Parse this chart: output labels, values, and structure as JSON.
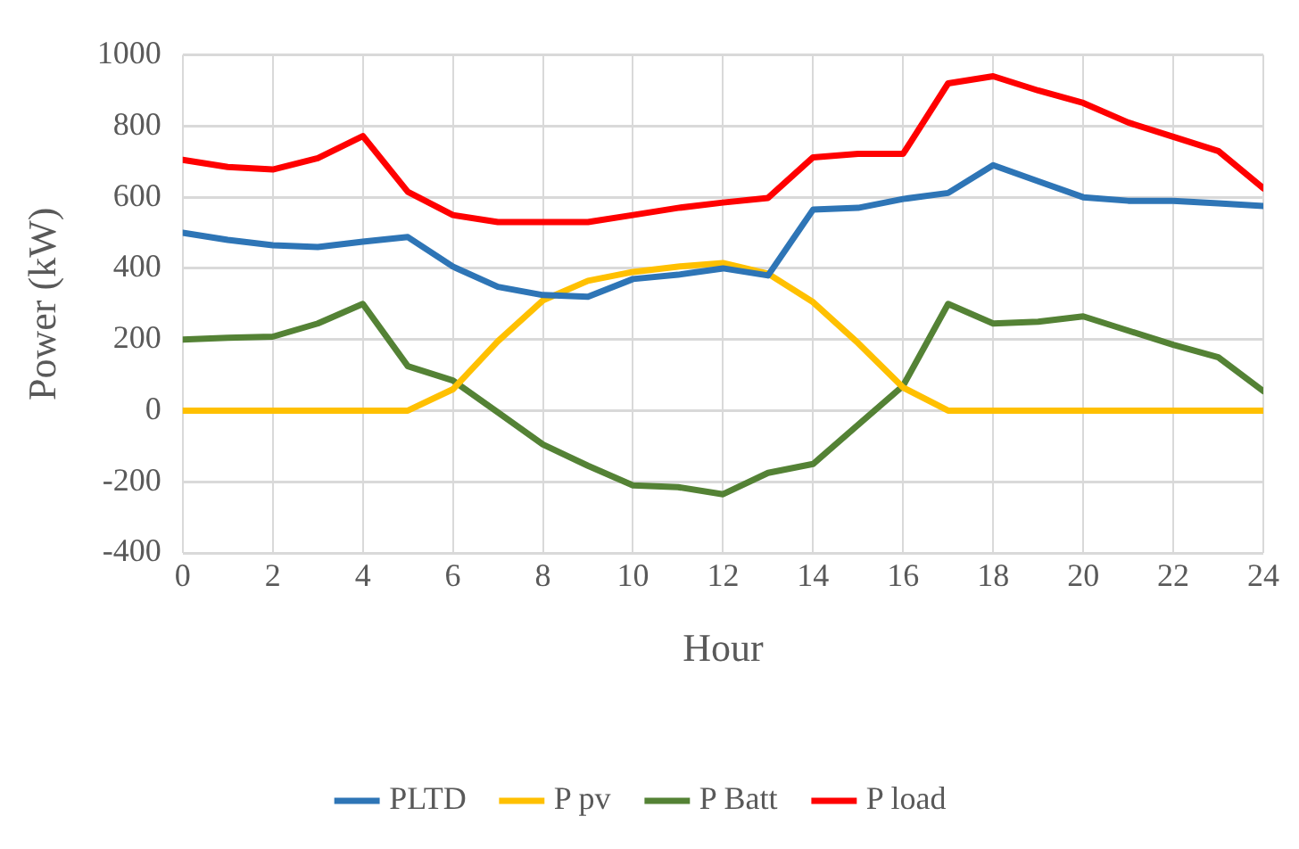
{
  "chart_data": {
    "type": "line",
    "xlabel": "Hour",
    "ylabel": "Power (kW)",
    "x": [
      0,
      1,
      2,
      3,
      4,
      5,
      6,
      7,
      8,
      9,
      10,
      11,
      12,
      13,
      14,
      15,
      16,
      17,
      18,
      19,
      20,
      21,
      22,
      23,
      24
    ],
    "series": [
      {
        "name": "PLTD",
        "color": "#2e75b6",
        "values": [
          500,
          480,
          465,
          460,
          475,
          488,
          405,
          348,
          325,
          320,
          370,
          382,
          400,
          380,
          565,
          570,
          595,
          612,
          690,
          645,
          600,
          590,
          590,
          583,
          575
        ]
      },
      {
        "name": "P pv",
        "color": "#ffc000",
        "values": [
          0,
          0,
          0,
          0,
          0,
          0,
          60,
          195,
          310,
          365,
          390,
          405,
          415,
          385,
          305,
          190,
          65,
          0,
          0,
          0,
          0,
          0,
          0,
          0,
          0
        ]
      },
      {
        "name": "P Batt",
        "color": "#548235",
        "values": [
          200,
          205,
          208,
          245,
          300,
          125,
          85,
          -5,
          -95,
          -155,
          -210,
          -215,
          -235,
          -175,
          -150,
          -40,
          70,
          300,
          245,
          250,
          265,
          225,
          185,
          150,
          55
        ]
      },
      {
        "name": "P load",
        "color": "#ff0000",
        "values": [
          705,
          685,
          678,
          710,
          772,
          615,
          550,
          530,
          530,
          530,
          550,
          570,
          585,
          598,
          712,
          722,
          722,
          920,
          940,
          900,
          865,
          810,
          770,
          730,
          625
        ]
      }
    ],
    "xlim": [
      0,
      24
    ],
    "xticks": [
      0,
      2,
      4,
      6,
      8,
      10,
      12,
      14,
      16,
      18,
      20,
      22,
      24
    ],
    "ylim": [
      -400,
      1000
    ],
    "yticks": [
      -400,
      -200,
      0,
      200,
      400,
      600,
      800,
      1000
    ],
    "grid": true,
    "legend": "bottom",
    "marker": "none",
    "line_style": "solid"
  }
}
